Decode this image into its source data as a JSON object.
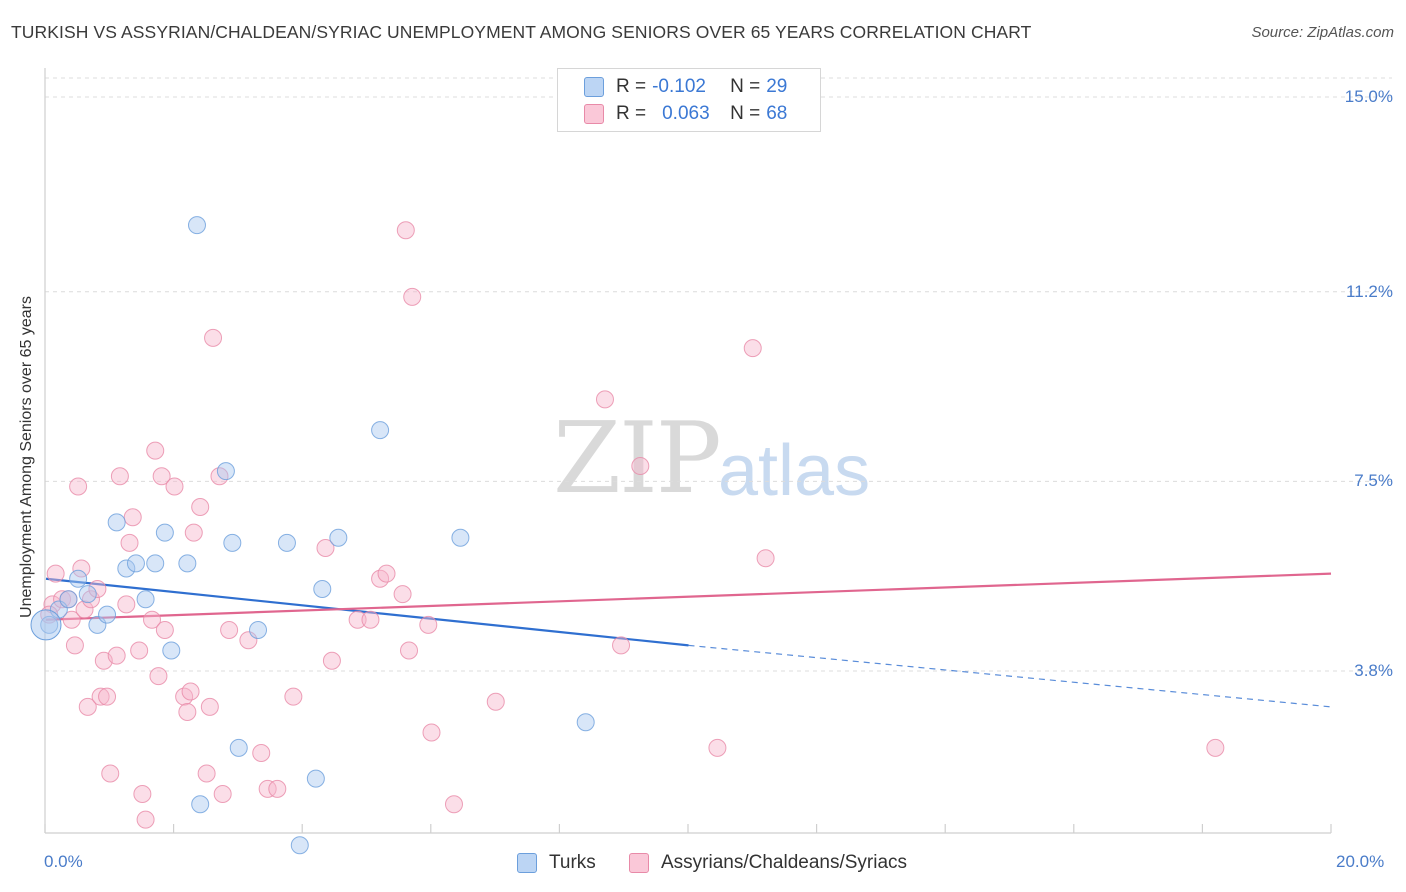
{
  "title": "TURKISH VS ASSYRIAN/CHALDEAN/SYRIAC UNEMPLOYMENT AMONG SENIORS OVER 65 YEARS CORRELATION CHART",
  "source": "Source: ZipAtlas.com",
  "watermark": {
    "zip": "ZIP",
    "atlas": "atlas"
  },
  "legend": {
    "turks": {
      "r_label": "R =",
      "r_value": "-0.102",
      "n_label": "N =",
      "n_value": "29",
      "color": "#a8c8f0"
    },
    "assyrians": {
      "r_label": "R =",
      "r_value": "0.063",
      "n_label": "N =",
      "n_value": "68",
      "color": "#f7b6cb"
    }
  },
  "bottom_legend": [
    "Turks",
    "Assyrians/Chaldeans/Syriacs"
  ],
  "colors": {
    "turks_fill": "#a8c8f0",
    "turks_stroke": "#6c9fdc",
    "turks_line": "#2f6fd0",
    "assy_fill": "#f7b6cb",
    "assy_stroke": "#e88aa8",
    "assy_line": "#e0668f",
    "tick_text": "#4a7cc9",
    "grid": "#dcdcdc"
  },
  "chart_data": {
    "type": "scatter",
    "ylabel": "Unemployment Among Seniors over 65 years",
    "xlabel": "",
    "xlim": [
      0,
      20
    ],
    "ylim": [
      0,
      15.5
    ],
    "y_ticks": [
      3.8,
      7.5,
      11.2,
      15.0
    ],
    "y_tick_labels": [
      "3.8%",
      "7.5%",
      "11.2%",
      "15.0%"
    ],
    "x_tick_labels": [
      "0.0%",
      "20.0%"
    ],
    "series": [
      {
        "name": "Turks",
        "points": [
          [
            0.05,
            4.7
          ],
          [
            0.2,
            5.0
          ],
          [
            0.35,
            5.2
          ],
          [
            0.5,
            5.6
          ],
          [
            0.65,
            5.3
          ],
          [
            0.8,
            4.7
          ],
          [
            0.95,
            4.9
          ],
          [
            1.1,
            6.7
          ],
          [
            1.25,
            5.8
          ],
          [
            1.4,
            5.9
          ],
          [
            1.55,
            5.2
          ],
          [
            1.7,
            5.9
          ],
          [
            1.85,
            6.5
          ],
          [
            1.95,
            4.2
          ],
          [
            2.2,
            5.9
          ],
          [
            2.35,
            12.5
          ],
          [
            2.4,
            1.2
          ],
          [
            2.8,
            7.7
          ],
          [
            2.9,
            6.3
          ],
          [
            3.0,
            2.3
          ],
          [
            3.3,
            4.6
          ],
          [
            3.75,
            6.3
          ],
          [
            3.95,
            0.4
          ],
          [
            4.2,
            1.7
          ],
          [
            4.3,
            5.4
          ],
          [
            4.55,
            6.4
          ],
          [
            5.2,
            8.5
          ],
          [
            6.45,
            6.4
          ],
          [
            8.4,
            2.8
          ]
        ],
        "trend": {
          "x": [
            0.0,
            10.0
          ],
          "y": [
            5.6,
            4.3
          ],
          "dashed_to": [
            20.0,
            3.1
          ]
        }
      },
      {
        "name": "Assyrians/Chaldeans/Syriacs",
        "points": [
          [
            0.1,
            5.1
          ],
          [
            0.15,
            5.7
          ],
          [
            0.25,
            5.2
          ],
          [
            0.35,
            5.2
          ],
          [
            0.4,
            4.8
          ],
          [
            0.45,
            4.3
          ],
          [
            0.5,
            7.4
          ],
          [
            0.55,
            5.8
          ],
          [
            0.6,
            5.0
          ],
          [
            0.65,
            3.1
          ],
          [
            0.7,
            5.2
          ],
          [
            0.8,
            5.4
          ],
          [
            0.85,
            3.3
          ],
          [
            0.9,
            4.0
          ],
          [
            0.95,
            3.3
          ],
          [
            1.0,
            1.8
          ],
          [
            1.1,
            4.1
          ],
          [
            1.15,
            7.6
          ],
          [
            1.25,
            5.1
          ],
          [
            1.3,
            6.3
          ],
          [
            1.35,
            6.8
          ],
          [
            1.45,
            4.2
          ],
          [
            1.5,
            1.4
          ],
          [
            1.55,
            0.9
          ],
          [
            1.65,
            4.8
          ],
          [
            1.7,
            8.1
          ],
          [
            1.75,
            3.7
          ],
          [
            1.8,
            7.6
          ],
          [
            1.85,
            4.6
          ],
          [
            2.0,
            7.4
          ],
          [
            2.15,
            3.3
          ],
          [
            2.2,
            3.0
          ],
          [
            2.25,
            3.4
          ],
          [
            2.3,
            6.5
          ],
          [
            2.4,
            7.0
          ],
          [
            2.5,
            1.8
          ],
          [
            2.55,
            3.1
          ],
          [
            2.6,
            10.3
          ],
          [
            2.7,
            7.6
          ],
          [
            2.75,
            1.4
          ],
          [
            2.85,
            4.6
          ],
          [
            3.15,
            4.4
          ],
          [
            3.35,
            2.2
          ],
          [
            3.45,
            1.5
          ],
          [
            3.6,
            1.5
          ],
          [
            3.85,
            3.3
          ],
          [
            4.35,
            6.2
          ],
          [
            4.45,
            4.0
          ],
          [
            4.85,
            4.8
          ],
          [
            5.05,
            4.8
          ],
          [
            5.2,
            5.6
          ],
          [
            5.3,
            5.7
          ],
          [
            5.55,
            5.3
          ],
          [
            5.6,
            12.4
          ],
          [
            5.65,
            4.2
          ],
          [
            5.7,
            11.1
          ],
          [
            5.95,
            4.7
          ],
          [
            6.0,
            2.6
          ],
          [
            6.35,
            1.2
          ],
          [
            7.0,
            3.2
          ],
          [
            8.7,
            9.1
          ],
          [
            8.95,
            4.3
          ],
          [
            9.25,
            7.8
          ],
          [
            10.45,
            2.3
          ],
          [
            11.0,
            10.1
          ],
          [
            11.2,
            6.0
          ],
          [
            18.2,
            2.3
          ],
          [
            0.05,
            4.9
          ]
        ],
        "trend": {
          "x": [
            0.0,
            20.0
          ],
          "y": [
            4.8,
            5.7
          ]
        }
      }
    ],
    "grid": true,
    "legend_position": "top-center"
  }
}
